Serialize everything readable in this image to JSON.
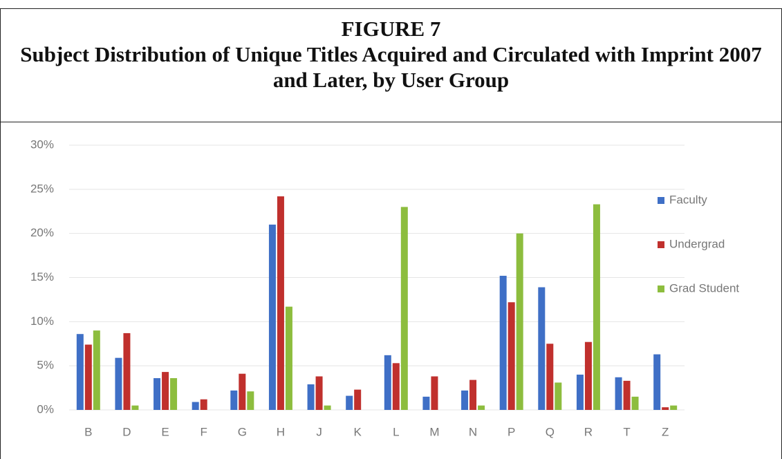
{
  "chart_data": {
    "type": "bar",
    "figure_label": "FIGURE 7",
    "title": "Subject Distribution of Unique Titles Acquired and Circulated with Imprint 2007 and Later, by User Group",
    "categories": [
      "B",
      "D",
      "E",
      "F",
      "G",
      "H",
      "J",
      "K",
      "L",
      "M",
      "N",
      "P",
      "Q",
      "R",
      "T",
      "Z"
    ],
    "series": [
      {
        "name": "Faculty",
        "color": "#3f6fc6",
        "values": [
          8.6,
          5.9,
          3.6,
          0.9,
          2.2,
          21.0,
          2.9,
          1.6,
          6.2,
          1.5,
          2.2,
          15.2,
          13.9,
          4.0,
          3.7,
          6.3
        ]
      },
      {
        "name": "Undergrad",
        "color": "#c0302d",
        "values": [
          7.4,
          8.7,
          4.3,
          1.2,
          4.1,
          24.2,
          3.8,
          2.3,
          5.3,
          3.8,
          3.4,
          12.2,
          7.5,
          7.7,
          3.3,
          0.3
        ]
      },
      {
        "name": "Grad Student",
        "color": "#8dbd3e",
        "values": [
          9.0,
          0.5,
          3.6,
          0,
          2.1,
          11.7,
          0.5,
          0,
          23.0,
          0,
          0.5,
          20.0,
          3.1,
          23.3,
          1.5,
          0.5
        ]
      }
    ],
    "ylim": [
      0,
      30
    ],
    "yticks": [
      {
        "value": 0,
        "label": "0%"
      },
      {
        "value": 5,
        "label": "5%"
      },
      {
        "value": 10,
        "label": "10%"
      },
      {
        "value": 15,
        "label": "15%"
      },
      {
        "value": 20,
        "label": "20%"
      },
      {
        "value": 25,
        "label": "25%"
      },
      {
        "value": 30,
        "label": "30%"
      }
    ],
    "grid": true,
    "legend": "right"
  }
}
